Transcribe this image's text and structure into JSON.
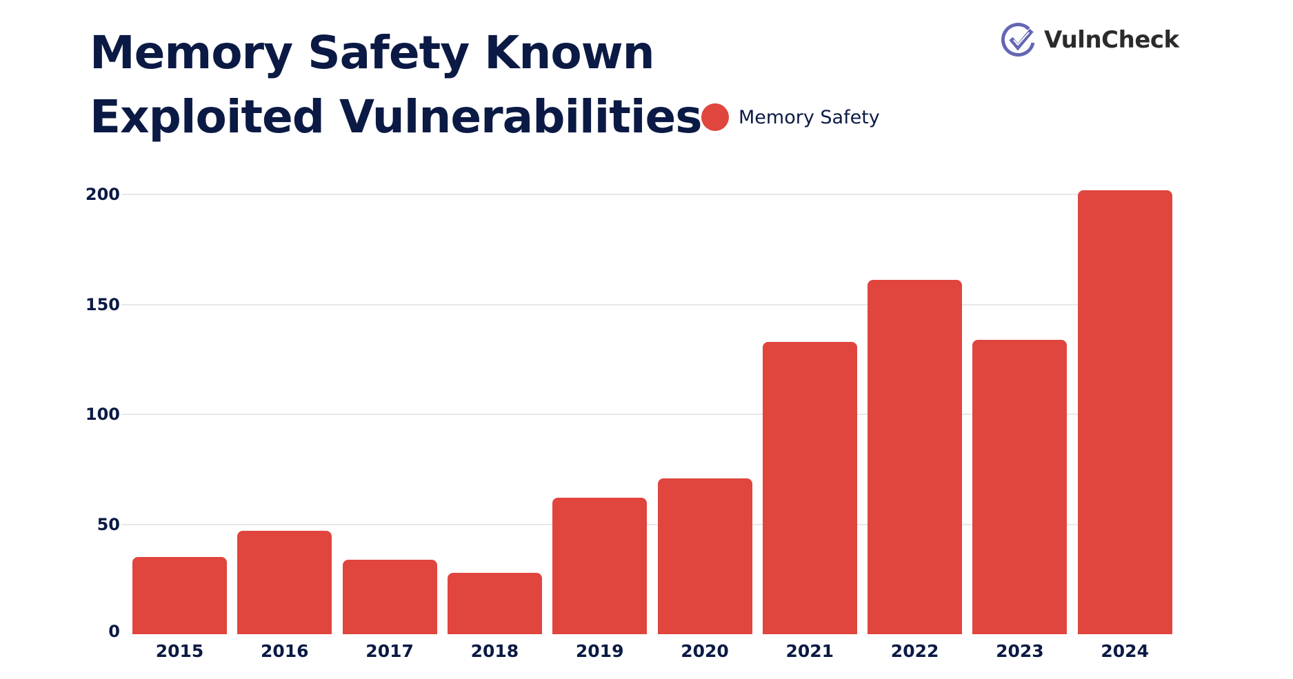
{
  "header": {
    "title_line1": "Memory Safety Known",
    "title_line2": "Exploited Vulnerabilities"
  },
  "legend": {
    "items": [
      {
        "label": "Memory Safety",
        "color": "#e0453e"
      }
    ]
  },
  "logo": {
    "text": "VulnCheck",
    "icon": "check-circle-icon",
    "icon_color": "#6466b4",
    "text_color": "#2b2b2b"
  },
  "colors": {
    "bar": "#e0453e",
    "text": "#0b1a44",
    "grid": "#e8e8ea"
  },
  "chart_data": {
    "type": "bar",
    "title": "Memory Safety Known Exploited Vulnerabilities",
    "xlabel": "",
    "ylabel": "",
    "categories": [
      "2015",
      "2016",
      "2017",
      "2018",
      "2019",
      "2020",
      "2021",
      "2022",
      "2023",
      "2024"
    ],
    "series": [
      {
        "name": "Memory Safety",
        "values": [
          35,
          47,
          34,
          28,
          62,
          71,
          133,
          161,
          134,
          202
        ],
        "color": "#e0453e"
      }
    ],
    "yticks": [
      0,
      50,
      100,
      150,
      200
    ],
    "ytick_labels": [
      "0",
      "50",
      "100",
      "150",
      "200"
    ],
    "ylim": [
      0,
      200
    ],
    "grid": true,
    "legend_position": "top"
  }
}
